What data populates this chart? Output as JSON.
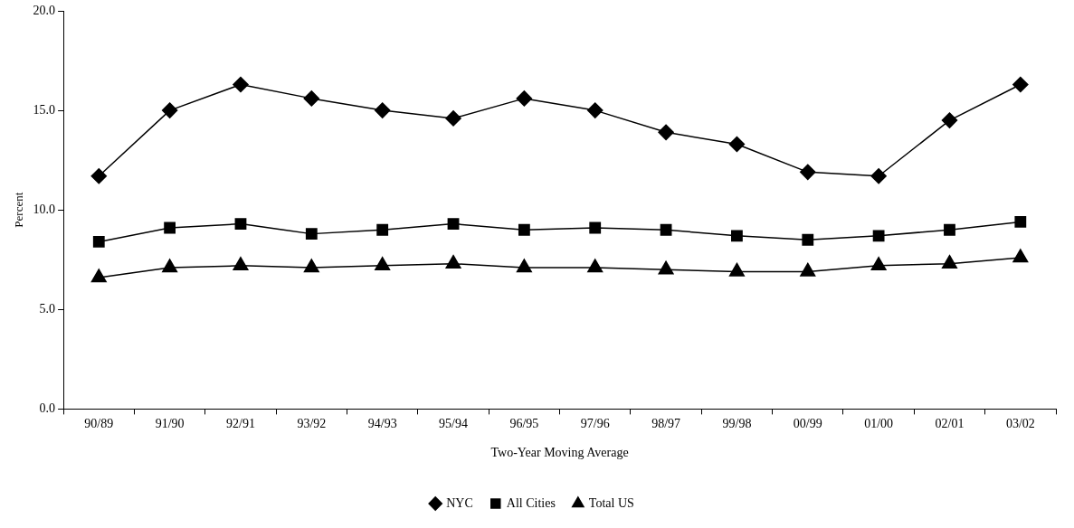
{
  "chart_data": {
    "type": "line",
    "xlabel": "Two-Year Moving Average",
    "ylabel": "Percent",
    "categories": [
      "90/89",
      "91/90",
      "92/91",
      "93/92",
      "94/93",
      "95/94",
      "96/95",
      "97/96",
      "98/97",
      "99/98",
      "00/99",
      "01/00",
      "02/01",
      "03/02"
    ],
    "series": [
      {
        "name": "NYC",
        "color": "#000000",
        "marker": "diamond",
        "values": [
          11.7,
          15.0,
          16.3,
          15.6,
          15.0,
          14.6,
          15.6,
          15.0,
          13.9,
          13.3,
          11.9,
          11.7,
          14.5,
          16.3
        ]
      },
      {
        "name": "All Cities",
        "color": "#000000",
        "marker": "square",
        "values": [
          8.4,
          9.1,
          9.3,
          8.8,
          9.0,
          9.3,
          9.0,
          9.1,
          9.0,
          8.7,
          8.5,
          8.7,
          9.0,
          9.4
        ]
      },
      {
        "name": "Total US",
        "color": "#000000",
        "marker": "triangle",
        "values": [
          6.6,
          7.1,
          7.2,
          7.1,
          7.2,
          7.3,
          7.1,
          7.1,
          7.0,
          6.9,
          6.9,
          7.2,
          7.3,
          7.6
        ]
      }
    ],
    "ylim": [
      0,
      20
    ],
    "yticks": [
      {
        "value": 0,
        "label": "0.0"
      },
      {
        "value": 5,
        "label": "5.0"
      },
      {
        "value": 10,
        "label": "10.0"
      },
      {
        "value": 15,
        "label": "15.0"
      },
      {
        "value": 20,
        "label": "20.0"
      }
    ],
    "grid": false,
    "legend": "bottom",
    "line_style": "solid"
  }
}
